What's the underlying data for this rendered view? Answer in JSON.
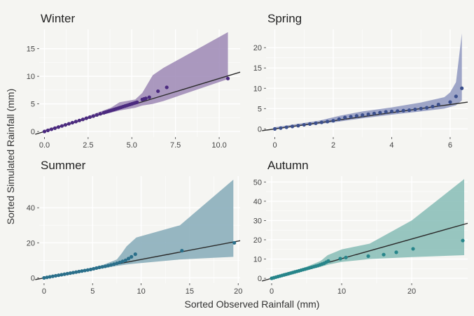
{
  "figure": {
    "xlabel": "Sorted Observed Rainfall (mm)",
    "ylabel": "Sorted Simulated Rainfall (mm)"
  },
  "chart_data": [
    {
      "type": "scatter",
      "title": "Winter",
      "color": "#4b2a7f",
      "band_color": "#9c87b5",
      "xlim": [
        -0.3,
        11.2
      ],
      "ylim": [
        -1,
        18.5
      ],
      "xticks": [
        0.0,
        2.5,
        5.0,
        7.5,
        10.0
      ],
      "xtick_labels": [
        "0.0",
        "2.5",
        "5.0",
        "7.5",
        "10.0"
      ],
      "yticks": [
        0,
        5,
        10,
        15
      ],
      "ref_line": {
        "slope": 0.96,
        "intercept": 0
      },
      "points": {
        "x": [
          0,
          0.2,
          0.4,
          0.6,
          0.8,
          1.0,
          1.2,
          1.4,
          1.6,
          1.8,
          2.0,
          2.2,
          2.4,
          2.6,
          2.8,
          3.0,
          3.2,
          3.4,
          3.5,
          3.6,
          3.7,
          3.8,
          3.9,
          4.0,
          4.1,
          4.2,
          4.3,
          4.4,
          4.5,
          4.6,
          4.7,
          4.8,
          4.9,
          5.0,
          5.1,
          5.2,
          5.3,
          5.6,
          5.7,
          5.8,
          6.0,
          6.5,
          7.0,
          10.5
        ],
        "y": [
          0,
          0.2,
          0.4,
          0.6,
          0.8,
          1.0,
          1.2,
          1.4,
          1.6,
          1.8,
          2.0,
          2.2,
          2.4,
          2.6,
          2.8,
          3.0,
          3.2,
          3.4,
          3.5,
          3.6,
          3.7,
          3.8,
          3.9,
          4.0,
          4.1,
          4.2,
          4.3,
          4.4,
          4.5,
          4.6,
          4.7,
          4.8,
          4.9,
          5.0,
          5.1,
          5.2,
          5.3,
          5.8,
          5.9,
          6.0,
          6.2,
          7.3,
          8.0,
          9.6
        ]
      },
      "band": {
        "x": [
          0,
          2,
          3.2,
          3.8,
          4.3,
          5.2,
          5.6,
          6.2,
          6.8,
          10.5
        ],
        "lower": [
          0,
          1.8,
          3.0,
          3.4,
          3.8,
          4.3,
          4.7,
          5.0,
          5.5,
          9.5
        ],
        "upper": [
          0.3,
          2.2,
          3.6,
          4.3,
          5.3,
          5.8,
          7.0,
          10.2,
          11.5,
          18
        ]
      }
    },
    {
      "type": "scatter",
      "title": "Spring",
      "color": "#3b4f8c",
      "band_color": "#8e97c0",
      "xlim": [
        -0.3,
        6.6
      ],
      "ylim": [
        -2,
        24.5
      ],
      "xticks": [
        0,
        2,
        4,
        6
      ],
      "xtick_labels": [
        "0",
        "2",
        "4",
        "6"
      ],
      "yticks": [
        0,
        5,
        10,
        15,
        20
      ],
      "ref_line": {
        "slope": 1.0,
        "intercept": 0
      },
      "points": {
        "x": [
          0,
          0.2,
          0.4,
          0.6,
          0.8,
          1.0,
          1.2,
          1.4,
          1.6,
          1.8,
          2.0,
          2.2,
          2.4,
          2.6,
          2.8,
          3.0,
          3.2,
          3.4,
          3.6,
          3.8,
          4.0,
          4.2,
          4.4,
          4.6,
          4.8,
          5.0,
          5.2,
          5.4,
          5.6,
          6.0,
          6.2,
          6.4
        ],
        "y": [
          0,
          0.2,
          0.4,
          0.6,
          0.8,
          1.0,
          1.2,
          1.4,
          1.6,
          1.8,
          2.0,
          2.4,
          2.8,
          3.0,
          3.2,
          3.4,
          3.6,
          3.8,
          4.0,
          4.2,
          4.3,
          4.4,
          4.5,
          4.6,
          4.8,
          5.0,
          5.2,
          5.5,
          6.0,
          6.6,
          8.0,
          10.0
        ]
      },
      "band": {
        "x": [
          0,
          1.5,
          2.2,
          3.0,
          4.0,
          5.0,
          5.8,
          6.0,
          6.2,
          6.4
        ],
        "lower": [
          0,
          1.2,
          1.8,
          2.6,
          3.5,
          4.3,
          5.0,
          5.4,
          5.8,
          7.0
        ],
        "upper": [
          0.4,
          2.0,
          3.2,
          4.3,
          5.3,
          6.5,
          7.8,
          9.0,
          11.5,
          23.5
        ]
      }
    },
    {
      "type": "scatter",
      "title": "Summer",
      "color": "#2a6f8a",
      "band_color": "#85aab8",
      "xlim": [
        -0.5,
        20.2
      ],
      "ylim": [
        -3,
        58
      ],
      "xticks": [
        0,
        5,
        10,
        15,
        20
      ],
      "xtick_labels": [
        "0",
        "5",
        "10",
        "15",
        "20"
      ],
      "yticks": [
        0,
        20,
        40
      ],
      "ref_line": {
        "slope": 1.05,
        "intercept": 0
      },
      "points": {
        "x": [
          0,
          0.3,
          0.6,
          0.9,
          1.2,
          1.5,
          1.8,
          2.1,
          2.4,
          2.7,
          3.0,
          3.3,
          3.6,
          3.9,
          4.2,
          4.5,
          4.8,
          5.1,
          5.4,
          5.7,
          6.0,
          6.3,
          6.6,
          6.9,
          7.2,
          7.5,
          7.8,
          8.1,
          8.4,
          8.7,
          9.0,
          9.4,
          14.2,
          19.6
        ],
        "y": [
          0,
          0.3,
          0.6,
          0.9,
          1.2,
          1.5,
          1.8,
          2.1,
          2.4,
          2.7,
          3.0,
          3.3,
          3.6,
          3.9,
          4.2,
          4.5,
          4.8,
          5.2,
          5.6,
          6.0,
          6.3,
          6.6,
          7.0,
          7.4,
          7.8,
          8.3,
          8.8,
          9.4,
          10.0,
          11.0,
          12.0,
          13.5,
          15.5,
          20.0
        ]
      },
      "band": {
        "x": [
          0,
          3,
          5,
          6,
          7.5,
          8,
          8.5,
          9.5,
          14,
          19.5
        ],
        "lower": [
          0,
          2.6,
          4.4,
          5.4,
          6.8,
          7.2,
          7.6,
          8.2,
          10.5,
          12
        ],
        "upper": [
          0.5,
          3.5,
          5.8,
          7.2,
          10.5,
          14,
          18,
          23,
          30,
          56
        ]
      }
    },
    {
      "type": "scatter",
      "title": "Autumn",
      "color": "#27858a",
      "band_color": "#86bcb6",
      "xlim": [
        -0.8,
        28
      ],
      "ylim": [
        -2.5,
        53
      ],
      "xticks": [
        0,
        10,
        20
      ],
      "xtick_labels": [
        "0",
        "10",
        "20"
      ],
      "yticks": [
        0,
        10,
        20,
        30,
        40,
        50
      ],
      "ref_line": {
        "slope": 1.02,
        "intercept": 0
      },
      "points": {
        "x": [
          0,
          0.3,
          0.6,
          0.9,
          1.2,
          1.5,
          1.8,
          2.1,
          2.4,
          2.7,
          3.0,
          3.3,
          3.6,
          3.9,
          4.2,
          4.5,
          4.8,
          5.1,
          5.4,
          5.7,
          6.0,
          6.3,
          6.6,
          6.9,
          7.2,
          7.5,
          7.8,
          8.1,
          9.8,
          10.6,
          13.8,
          16.0,
          17.8,
          20.2,
          27.3
        ],
        "y": [
          0,
          0.3,
          0.6,
          0.9,
          1.2,
          1.5,
          1.8,
          2.1,
          2.4,
          2.7,
          3.0,
          3.3,
          3.6,
          3.9,
          4.2,
          4.5,
          4.8,
          5.1,
          5.4,
          5.7,
          6.0,
          6.3,
          6.6,
          7.0,
          7.4,
          7.8,
          8.4,
          9.0,
          10.2,
          10.8,
          11.5,
          12.3,
          13.5,
          15.3,
          19.6
        ]
      },
      "band": {
        "x": [
          0,
          3,
          5,
          7,
          8,
          10,
          14,
          20,
          27.5
        ],
        "lower": [
          0,
          2.6,
          4.4,
          6.0,
          7.0,
          8.5,
          10.0,
          11.0,
          12.0
        ],
        "upper": [
          0.5,
          3.5,
          6.0,
          9.0,
          12.0,
          15.0,
          18.0,
          30.0,
          51.5
        ]
      }
    }
  ]
}
